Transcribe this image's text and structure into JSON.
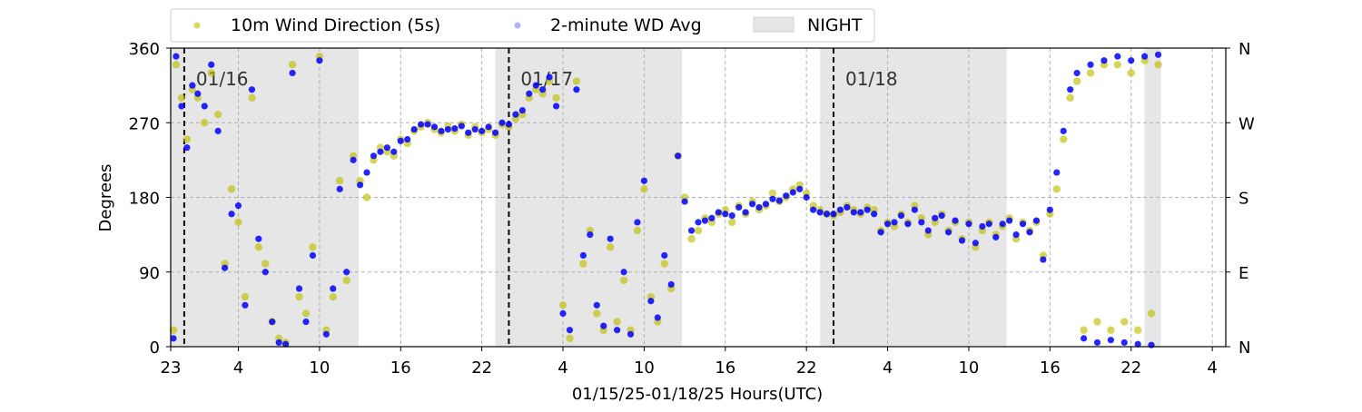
{
  "chart_data": {
    "type": "scatter",
    "title": "",
    "xlabel": "01/15/25-01/18/25  Hours(UTC)",
    "ylabel": "Degrees",
    "xlim": [
      23,
      101
    ],
    "ylim": [
      0,
      360
    ],
    "x_tick_values": [
      23,
      28,
      34,
      40,
      46,
      52,
      58,
      64,
      70,
      76,
      82,
      88,
      94,
      100,
      106
    ],
    "x_tick_labels": [
      "23",
      "4",
      "10",
      "16",
      "22",
      "4",
      "10",
      "16",
      "22",
      "4",
      "10",
      "16",
      "22",
      "4",
      ""
    ],
    "x_ticks": [
      {
        "value": 23,
        "label": "23"
      },
      {
        "value": 28,
        "label": "4"
      },
      {
        "value": 34,
        "label": "10"
      },
      {
        "value": 40,
        "label": "16"
      },
      {
        "value": 46,
        "label": "22"
      },
      {
        "value": 52,
        "label": "4"
      },
      {
        "value": 58,
        "label": "10"
      },
      {
        "value": 64,
        "label": "16"
      },
      {
        "value": 70,
        "label": "22"
      },
      {
        "value": 76,
        "label": "4"
      },
      {
        "value": 82,
        "label": "10"
      },
      {
        "value": 88,
        "label": "16"
      },
      {
        "value": 94,
        "label": "22"
      },
      {
        "value": 100,
        "label": "4"
      }
    ],
    "y_ticks": [
      0,
      90,
      180,
      270,
      360
    ],
    "y_right_ticks": [
      {
        "value": 0,
        "label": "N"
      },
      {
        "value": 90,
        "label": "E"
      },
      {
        "value": 180,
        "label": "S"
      },
      {
        "value": 270,
        "label": "W"
      },
      {
        "value": 360,
        "label": "N"
      }
    ],
    "grid": true,
    "legend_position": "top",
    "night_periods": [
      [
        23,
        36.9
      ],
      [
        47,
        60.8
      ],
      [
        71,
        84.8
      ],
      [
        95,
        96.2
      ]
    ],
    "day_markers": [
      {
        "x": 24,
        "label": "01/16"
      },
      {
        "x": 48,
        "label": "01/17"
      },
      {
        "x": 72,
        "label": "01/18"
      }
    ],
    "series": [
      {
        "name": "10m Wind Direction (5s)",
        "color": "#bfbf00",
        "points": [
          [
            23.2,
            20
          ],
          [
            23.4,
            340
          ],
          [
            23.8,
            300
          ],
          [
            24.2,
            250
          ],
          [
            24.6,
            310
          ],
          [
            25.0,
            300
          ],
          [
            25.5,
            270
          ],
          [
            26,
            330
          ],
          [
            26.5,
            280
          ],
          [
            27,
            100
          ],
          [
            27.5,
            190
          ],
          [
            28,
            150
          ],
          [
            28.5,
            60
          ],
          [
            29,
            300
          ],
          [
            29.5,
            120
          ],
          [
            30,
            100
          ],
          [
            30.5,
            30
          ],
          [
            31,
            10
          ],
          [
            31.5,
            5
          ],
          [
            32,
            340
          ],
          [
            32.5,
            60
          ],
          [
            33,
            40
          ],
          [
            33.5,
            120
          ],
          [
            34,
            350
          ],
          [
            34.5,
            20
          ],
          [
            35,
            60
          ],
          [
            35.5,
            200
          ],
          [
            36,
            80
          ],
          [
            36.5,
            230
          ],
          [
            37,
            200
          ],
          [
            37.5,
            180
          ],
          [
            38,
            225
          ],
          [
            38.5,
            240
          ],
          [
            39,
            235
          ],
          [
            39.5,
            230
          ],
          [
            40,
            250
          ],
          [
            40.5,
            245
          ],
          [
            41,
            260
          ],
          [
            41.5,
            265
          ],
          [
            42,
            270
          ],
          [
            42.5,
            262
          ],
          [
            43,
            258
          ],
          [
            43.5,
            266
          ],
          [
            44,
            260
          ],
          [
            44.5,
            268
          ],
          [
            45,
            255
          ],
          [
            45.5,
            265
          ],
          [
            46,
            258
          ],
          [
            46.5,
            262
          ],
          [
            47,
            255
          ],
          [
            47.5,
            268
          ],
          [
            48,
            265
          ],
          [
            48.5,
            275
          ],
          [
            49,
            280
          ],
          [
            49.5,
            300
          ],
          [
            50,
            310
          ],
          [
            50.5,
            305
          ],
          [
            51,
            320
          ],
          [
            51.5,
            300
          ],
          [
            52,
            50
          ],
          [
            52.5,
            10
          ],
          [
            53,
            320
          ],
          [
            53.5,
            100
          ],
          [
            54,
            140
          ],
          [
            54.5,
            40
          ],
          [
            55,
            20
          ],
          [
            55.5,
            120
          ],
          [
            56,
            30
          ],
          [
            56.5,
            80
          ],
          [
            57,
            20
          ],
          [
            57.5,
            140
          ],
          [
            58,
            190
          ],
          [
            58.5,
            60
          ],
          [
            59,
            30
          ],
          [
            59.5,
            100
          ],
          [
            60,
            70
          ],
          [
            60.5,
            230
          ],
          [
            61,
            180
          ],
          [
            61.5,
            130
          ],
          [
            62,
            140
          ],
          [
            62.5,
            155
          ],
          [
            63,
            150
          ],
          [
            63.5,
            160
          ],
          [
            64,
            165
          ],
          [
            64.5,
            150
          ],
          [
            65,
            170
          ],
          [
            65.5,
            160
          ],
          [
            66,
            175
          ],
          [
            66.5,
            165
          ],
          [
            67,
            170
          ],
          [
            67.5,
            185
          ],
          [
            68,
            175
          ],
          [
            68.5,
            180
          ],
          [
            69,
            190
          ],
          [
            69.5,
            195
          ],
          [
            70,
            185
          ],
          [
            70.5,
            170
          ],
          [
            71,
            165
          ],
          [
            71.5,
            160
          ],
          [
            72,
            158
          ],
          [
            72.5,
            162
          ],
          [
            73,
            170
          ],
          [
            73.5,
            165
          ],
          [
            74,
            160
          ],
          [
            74.5,
            168
          ],
          [
            75,
            165
          ],
          [
            75.5,
            140
          ],
          [
            76,
            150
          ],
          [
            76.5,
            145
          ],
          [
            77,
            160
          ],
          [
            77.5,
            150
          ],
          [
            78,
            170
          ],
          [
            78.5,
            155
          ],
          [
            79,
            135
          ],
          [
            79.5,
            150
          ],
          [
            80,
            160
          ],
          [
            80.5,
            140
          ],
          [
            81,
            150
          ],
          [
            81.5,
            130
          ],
          [
            82,
            150
          ],
          [
            82.5,
            120
          ],
          [
            83,
            140
          ],
          [
            83.5,
            150
          ],
          [
            84,
            135
          ],
          [
            84.5,
            145
          ],
          [
            85,
            155
          ],
          [
            85.5,
            130
          ],
          [
            86,
            150
          ],
          [
            86.5,
            140
          ],
          [
            87,
            150
          ],
          [
            87.5,
            110
          ],
          [
            88,
            160
          ],
          [
            88.5,
            190
          ],
          [
            89,
            250
          ],
          [
            89.5,
            300
          ],
          [
            90,
            320
          ],
          [
            90.5,
            20
          ],
          [
            91,
            330
          ],
          [
            91.5,
            30
          ],
          [
            92,
            340
          ],
          [
            92.5,
            20
          ],
          [
            93,
            340
          ],
          [
            93.5,
            30
          ],
          [
            94,
            330
          ],
          [
            94.5,
            20
          ],
          [
            95,
            345
          ],
          [
            95.5,
            40
          ],
          [
            96,
            340
          ]
        ]
      },
      {
        "name": "2-minute WD Avg",
        "color": "#0000ff",
        "points": [
          [
            23.2,
            10
          ],
          [
            23.4,
            350
          ],
          [
            23.8,
            290
          ],
          [
            24.2,
            240
          ],
          [
            24.6,
            315
          ],
          [
            25.0,
            305
          ],
          [
            25.5,
            290
          ],
          [
            26,
            340
          ],
          [
            26.5,
            260
          ],
          [
            27,
            95
          ],
          [
            27.5,
            160
          ],
          [
            28,
            170
          ],
          [
            28.5,
            50
          ],
          [
            29,
            310
          ],
          [
            29.5,
            130
          ],
          [
            30,
            90
          ],
          [
            30.5,
            30
          ],
          [
            31,
            5
          ],
          [
            31.5,
            3
          ],
          [
            32,
            330
          ],
          [
            32.5,
            70
          ],
          [
            33,
            30
          ],
          [
            33.5,
            110
          ],
          [
            34,
            345
          ],
          [
            34.5,
            15
          ],
          [
            35,
            70
          ],
          [
            35.5,
            190
          ],
          [
            36,
            90
          ],
          [
            36.5,
            225
          ],
          [
            37,
            195
          ],
          [
            37.5,
            210
          ],
          [
            38,
            230
          ],
          [
            38.5,
            235
          ],
          [
            39,
            240
          ],
          [
            39.5,
            235
          ],
          [
            40,
            248
          ],
          [
            40.5,
            250
          ],
          [
            41,
            262
          ],
          [
            41.5,
            268
          ],
          [
            42,
            268
          ],
          [
            42.5,
            265
          ],
          [
            43,
            260
          ],
          [
            43.5,
            262
          ],
          [
            44,
            263
          ],
          [
            44.5,
            266
          ],
          [
            45,
            258
          ],
          [
            45.5,
            262
          ],
          [
            46,
            260
          ],
          [
            46.5,
            265
          ],
          [
            47,
            258
          ],
          [
            47.5,
            270
          ],
          [
            48,
            268
          ],
          [
            48.5,
            280
          ],
          [
            49,
            285
          ],
          [
            49.5,
            305
          ],
          [
            50,
            315
          ],
          [
            50.5,
            310
          ],
          [
            51,
            325
          ],
          [
            51.5,
            290
          ],
          [
            52,
            40
          ],
          [
            52.5,
            20
          ],
          [
            53,
            310
          ],
          [
            53.5,
            110
          ],
          [
            54,
            135
          ],
          [
            54.5,
            50
          ],
          [
            55,
            25
          ],
          [
            55.5,
            130
          ],
          [
            56,
            20
          ],
          [
            56.5,
            90
          ],
          [
            57,
            15
          ],
          [
            57.5,
            150
          ],
          [
            58,
            200
          ],
          [
            58.5,
            55
          ],
          [
            59,
            35
          ],
          [
            59.5,
            110
          ],
          [
            60,
            75
          ],
          [
            60.5,
            230
          ],
          [
            61,
            175
          ],
          [
            61.5,
            140
          ],
          [
            62,
            150
          ],
          [
            62.5,
            152
          ],
          [
            63,
            155
          ],
          [
            63.5,
            162
          ],
          [
            64,
            160
          ],
          [
            64.5,
            158
          ],
          [
            65,
            168
          ],
          [
            65.5,
            162
          ],
          [
            66,
            172
          ],
          [
            66.5,
            168
          ],
          [
            67,
            172
          ],
          [
            67.5,
            178
          ],
          [
            68,
            176
          ],
          [
            68.5,
            182
          ],
          [
            69,
            186
          ],
          [
            69.5,
            190
          ],
          [
            70,
            180
          ],
          [
            70.5,
            165
          ],
          [
            71,
            162
          ],
          [
            71.5,
            160
          ],
          [
            72,
            160
          ],
          [
            72.5,
            165
          ],
          [
            73,
            168
          ],
          [
            73.5,
            162
          ],
          [
            74,
            162
          ],
          [
            74.5,
            165
          ],
          [
            75,
            160
          ],
          [
            75.5,
            138
          ],
          [
            76,
            148
          ],
          [
            76.5,
            150
          ],
          [
            77,
            158
          ],
          [
            77.5,
            148
          ],
          [
            78,
            165
          ],
          [
            78.5,
            150
          ],
          [
            79,
            140
          ],
          [
            79.5,
            155
          ],
          [
            80,
            158
          ],
          [
            80.5,
            138
          ],
          [
            81,
            152
          ],
          [
            81.5,
            128
          ],
          [
            82,
            148
          ],
          [
            82.5,
            125
          ],
          [
            83,
            145
          ],
          [
            83.5,
            148
          ],
          [
            84,
            132
          ],
          [
            84.5,
            148
          ],
          [
            85,
            152
          ],
          [
            85.5,
            135
          ],
          [
            86,
            148
          ],
          [
            86.5,
            138
          ],
          [
            87,
            152
          ],
          [
            87.5,
            105
          ],
          [
            88,
            165
          ],
          [
            88.5,
            210
          ],
          [
            89,
            260
          ],
          [
            89.5,
            310
          ],
          [
            90,
            330
          ],
          [
            90.5,
            10
          ],
          [
            91,
            340
          ],
          [
            91.5,
            5
          ],
          [
            92,
            345
          ],
          [
            92.5,
            8
          ],
          [
            93,
            350
          ],
          [
            93.5,
            5
          ],
          [
            94,
            345
          ],
          [
            94.5,
            3
          ],
          [
            95,
            350
          ],
          [
            95.5,
            2
          ],
          [
            96,
            352
          ]
        ]
      }
    ],
    "night_legend_label": "NIGHT"
  },
  "colors": {
    "night_fill": "#e6e6e6",
    "grid": "#b0b0b0",
    "axis": "#000000",
    "marker_line": "#000000",
    "day_label": "#333333"
  }
}
